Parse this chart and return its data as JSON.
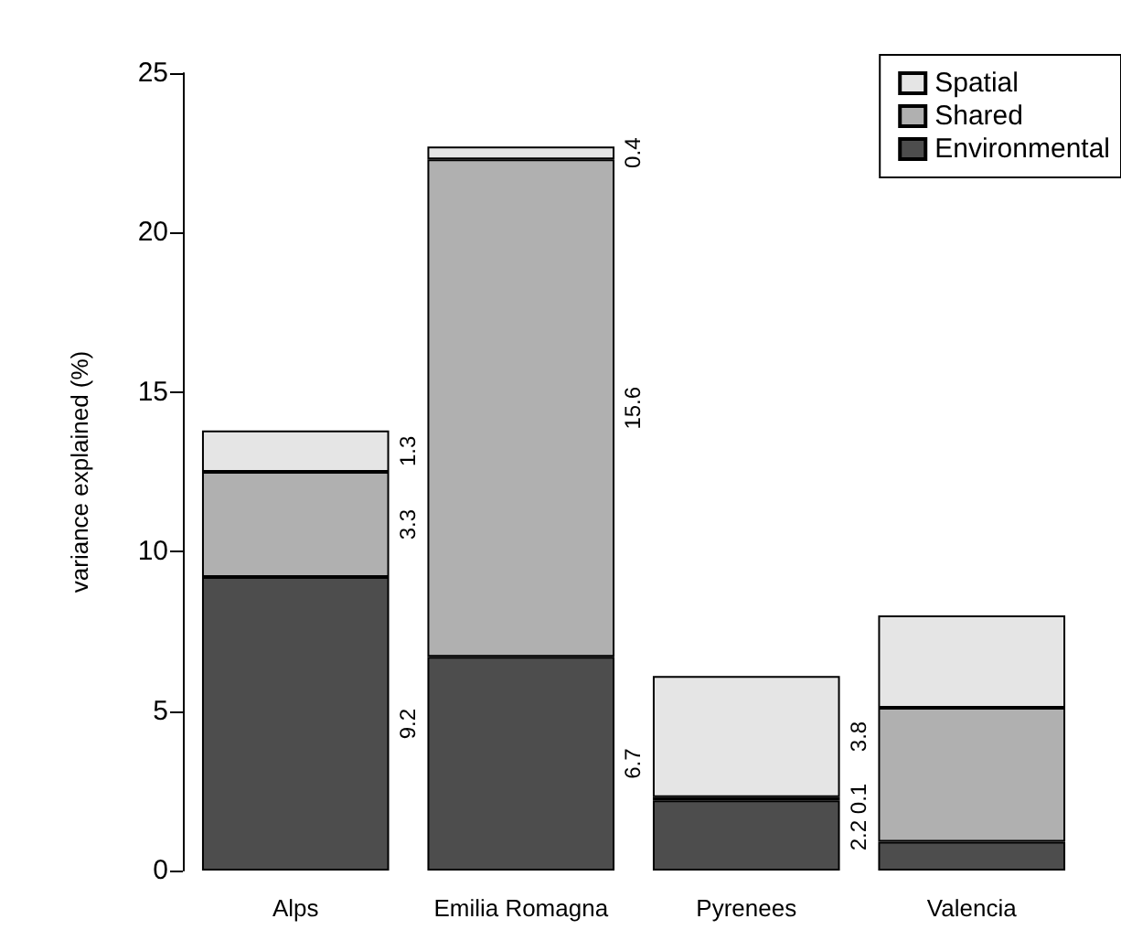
{
  "chart_data": {
    "type": "bar",
    "stacked": true,
    "ylabel": "variance explained (%)",
    "categories": [
      "Alps",
      "Emilia Romagna",
      "Pyrenees",
      "Valencia"
    ],
    "series": [
      {
        "name": "Environmental",
        "color": "#4d4d4d",
        "values": [
          9.2,
          6.7,
          2.2,
          0.9
        ],
        "value_labels": [
          "9.2",
          "6.7",
          "2.2",
          null
        ]
      },
      {
        "name": "Shared",
        "color": "#b0b0b0",
        "values": [
          3.3,
          15.6,
          0.1,
          4.2
        ],
        "value_labels": [
          "3.3",
          "15.6",
          "0.1",
          null
        ]
      },
      {
        "name": "Spatial",
        "color": "#e5e5e5",
        "values": [
          1.3,
          0.4,
          3.8,
          2.9
        ],
        "value_labels": [
          "1.3",
          "0.4",
          "3.8",
          null
        ]
      }
    ],
    "ylim": [
      0,
      25
    ],
    "yticks": [
      0,
      5,
      10,
      15,
      20,
      25
    ],
    "grid": false,
    "legend": "top right"
  }
}
